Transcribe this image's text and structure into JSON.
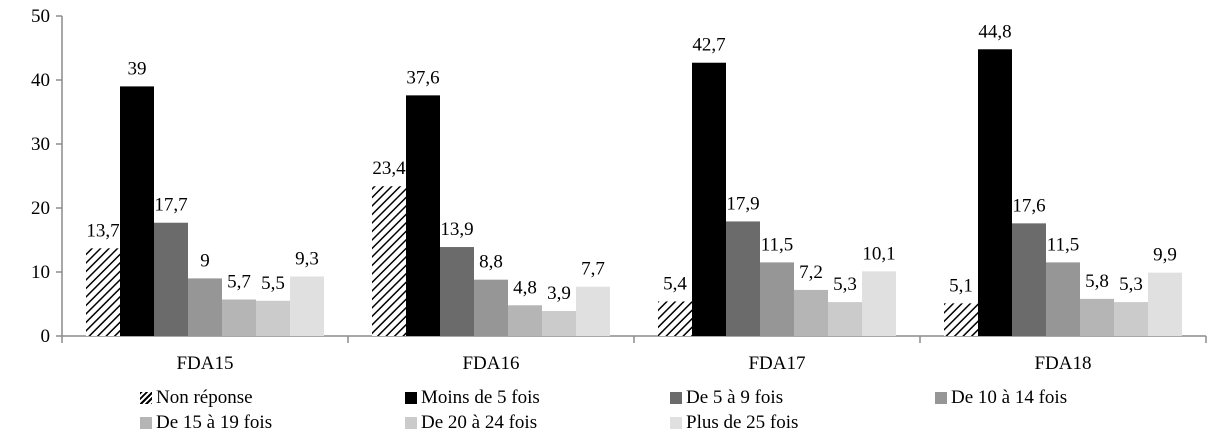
{
  "chart_data": {
    "type": "bar",
    "categories": [
      "FDA15",
      "FDA16",
      "FDA17",
      "FDA18"
    ],
    "ylim": [
      0,
      50
    ],
    "yticks": [
      0,
      10,
      20,
      30,
      40,
      50
    ],
    "grid": false,
    "legend_position": "bottom",
    "series": [
      {
        "name": "Non réponse",
        "values": [
          13.7,
          23.4,
          5.4,
          5.1
        ],
        "labels": [
          "13,7",
          "23,4",
          "5,4",
          "5,1"
        ],
        "color": "#ffffff",
        "pattern": "hatch"
      },
      {
        "name": "Moins de 5 fois",
        "values": [
          39,
          37.6,
          42.7,
          44.8
        ],
        "labels": [
          "39",
          "37,6",
          "42,7",
          "44,8"
        ],
        "color": "#000000"
      },
      {
        "name": "De 5 à 9 fois",
        "values": [
          17.7,
          13.9,
          17.9,
          17.6
        ],
        "labels": [
          "17,7",
          "13,9",
          "17,9",
          "17,6"
        ],
        "color": "#6b6b6b"
      },
      {
        "name": "De 10 à 14 fois",
        "values": [
          9,
          8.8,
          11.5,
          11.5
        ],
        "labels": [
          "9",
          "8,8",
          "11,5",
          "11,5"
        ],
        "color": "#969696"
      },
      {
        "name": "De 15 à 19 fois",
        "values": [
          5.7,
          4.8,
          7.2,
          5.8
        ],
        "labels": [
          "5,7",
          "4,8",
          "7,2",
          "5,8"
        ],
        "color": "#b5b5b5"
      },
      {
        "name": "De 20 à 24 fois",
        "values": [
          5.5,
          3.9,
          5.3,
          5.3
        ],
        "labels": [
          "5,5",
          "3,9",
          "5,3",
          "5,3"
        ],
        "color": "#cbcbcb"
      },
      {
        "name": "Plus de 25 fois",
        "values": [
          9.3,
          7.7,
          10.1,
          9.9
        ],
        "labels": [
          "9,3",
          "7,7",
          "10,1",
          "9,9"
        ],
        "color": "#e0e0e0"
      }
    ]
  }
}
